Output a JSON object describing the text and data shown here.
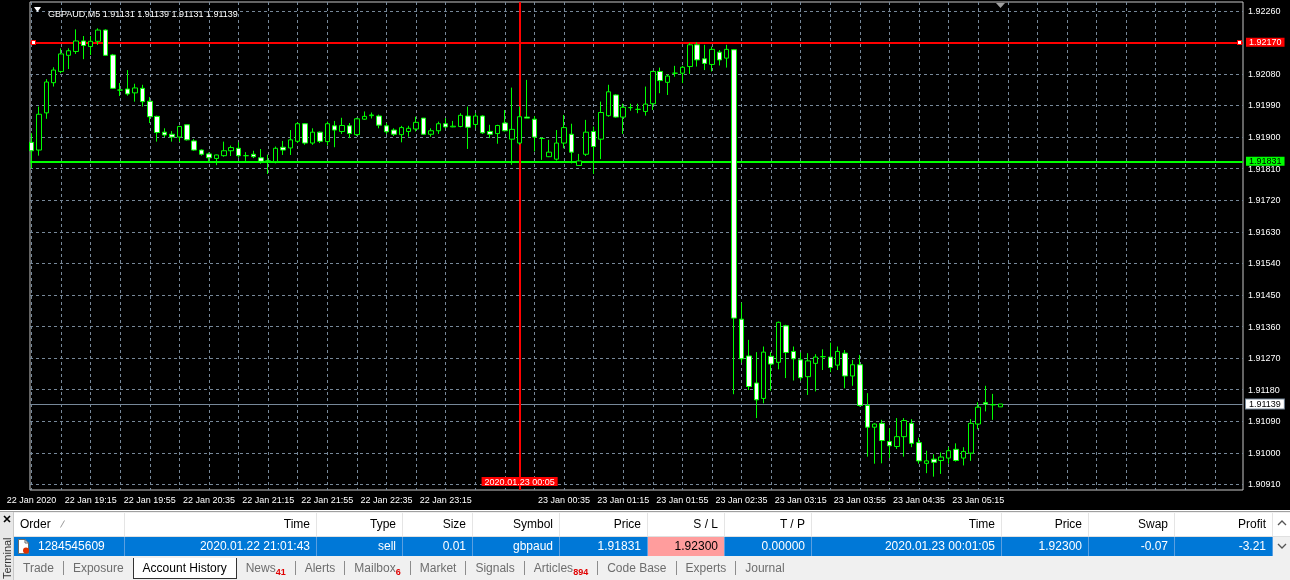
{
  "chart_data": [
    {
      "type": "candlestick",
      "title": "GBPAUD,M5 1.91131 1.91139 1.91131 1.91139",
      "color": "#00ff00",
      "x": [
        "2020-01-22T18:35",
        "2020-01-22T18:40",
        "2020-01-22T18:45",
        "2020-01-22T18:50",
        "2020-01-22T18:55",
        "2020-01-22T19:00",
        "2020-01-22T19:05",
        "2020-01-22T19:10",
        "2020-01-22T19:15",
        "2020-01-22T19:20",
        "2020-01-22T19:25",
        "2020-01-22T19:30",
        "2020-01-22T19:35",
        "2020-01-22T19:40",
        "2020-01-22T19:45",
        "2020-01-22T19:50",
        "2020-01-22T19:55",
        "2020-01-22T20:00",
        "2020-01-22T20:05",
        "2020-01-22T20:10",
        "2020-01-22T20:15",
        "2020-01-22T20:20",
        "2020-01-22T20:25",
        "2020-01-22T20:30",
        "2020-01-22T20:35",
        "2020-01-22T20:40",
        "2020-01-22T20:45",
        "2020-01-22T20:50",
        "2020-01-22T20:55",
        "2020-01-22T21:00",
        "2020-01-22T21:05",
        "2020-01-22T21:10",
        "2020-01-22T21:15",
        "2020-01-22T21:20",
        "2020-01-22T21:25",
        "2020-01-22T21:30",
        "2020-01-22T21:35",
        "2020-01-22T21:40",
        "2020-01-22T21:45",
        "2020-01-22T21:50",
        "2020-01-22T21:55",
        "2020-01-22T22:00",
        "2020-01-22T22:05",
        "2020-01-22T22:10",
        "2020-01-22T22:15",
        "2020-01-22T22:20",
        "2020-01-22T22:25",
        "2020-01-22T22:30",
        "2020-01-22T22:35",
        "2020-01-22T22:40",
        "2020-01-22T22:45",
        "2020-01-22T22:50",
        "2020-01-22T22:55",
        "2020-01-22T23:00",
        "2020-01-22T23:05",
        "2020-01-22T23:10",
        "2020-01-22T23:15",
        "2020-01-22T23:20",
        "2020-01-22T23:25",
        "2020-01-22T23:30",
        "2020-01-22T23:35",
        "2020-01-22T23:40",
        "2020-01-22T23:45",
        "2020-01-22T23:50",
        "2020-01-22T23:55",
        "2020-01-23T00:00",
        "2020-01-23T00:05",
        "2020-01-23T00:10",
        "2020-01-23T00:15",
        "2020-01-23T00:20",
        "2020-01-23T00:25",
        "2020-01-23T00:30",
        "2020-01-23T00:35",
        "2020-01-23T00:40",
        "2020-01-23T00:45",
        "2020-01-23T00:50",
        "2020-01-23T00:55",
        "2020-01-23T01:00",
        "2020-01-23T01:05",
        "2020-01-23T01:10",
        "2020-01-23T01:15",
        "2020-01-23T01:20",
        "2020-01-23T01:25",
        "2020-01-23T01:30",
        "2020-01-23T01:35",
        "2020-01-23T01:40",
        "2020-01-23T01:45",
        "2020-01-23T01:50",
        "2020-01-23T01:55",
        "2020-01-23T02:00",
        "2020-01-23T02:05",
        "2020-01-23T02:10",
        "2020-01-23T02:15",
        "2020-01-23T02:20",
        "2020-01-23T02:25",
        "2020-01-23T02:30",
        "2020-01-23T02:35",
        "2020-01-23T02:40",
        "2020-01-23T02:45",
        "2020-01-23T02:50",
        "2020-01-23T02:55",
        "2020-01-23T03:00",
        "2020-01-23T03:05",
        "2020-01-23T03:10",
        "2020-01-23T03:15",
        "2020-01-23T03:20",
        "2020-01-23T03:25",
        "2020-01-23T03:30",
        "2020-01-23T03:35",
        "2020-01-23T03:40",
        "2020-01-23T03:45",
        "2020-01-23T03:50",
        "2020-01-23T03:55",
        "2020-01-23T04:00",
        "2020-01-23T04:05",
        "2020-01-23T04:10",
        "2020-01-23T04:15",
        "2020-01-23T04:20",
        "2020-01-23T04:25",
        "2020-01-23T04:30",
        "2020-01-23T04:35",
        "2020-01-23T04:40",
        "2020-01-23T04:45",
        "2020-01-23T04:50",
        "2020-01-23T04:55",
        "2020-01-23T05:00",
        "2020-01-23T05:05",
        "2020-01-23T05:10",
        "2020-01-23T05:15",
        "2020-01-23T05:20",
        "2020-01-23T05:25",
        "2020-01-23T05:30"
      ],
      "ohlc": [
        [
          1.91885,
          1.91911,
          1.91811,
          1.91861
        ],
        [
          1.91863,
          1.91987,
          1.91847,
          1.91965
        ],
        [
          1.91969,
          1.92065,
          1.91952,
          1.92057
        ],
        [
          1.92055,
          1.92099,
          1.92044,
          1.92091
        ],
        [
          1.92087,
          1.92153,
          1.92082,
          1.92137
        ],
        [
          1.92133,
          1.92153,
          1.92094,
          1.92146
        ],
        [
          1.92144,
          1.92207,
          1.92137,
          1.92174
        ],
        [
          1.92174,
          1.92188,
          1.92122,
          1.92161
        ],
        [
          1.92158,
          1.92188,
          1.92134,
          1.92173
        ],
        [
          1.92173,
          1.9221,
          1.92163,
          1.92205
        ],
        [
          1.92205,
          1.92207,
          1.92132,
          1.92133
        ],
        [
          1.92134,
          1.92137,
          1.92037,
          1.92039
        ],
        [
          1.92034,
          1.92054,
          1.92017,
          1.92034
        ],
        [
          1.92037,
          1.92091,
          1.92018,
          1.92023
        ],
        [
          1.92026,
          1.92052,
          1.92001,
          1.9204
        ],
        [
          1.92039,
          1.92049,
          1.91987,
          1.92001
        ],
        [
          1.92002,
          1.92014,
          1.9194,
          1.91958
        ],
        [
          1.91959,
          1.91961,
          1.91887,
          1.91913
        ],
        [
          1.91914,
          1.91925,
          1.919,
          1.91906
        ],
        [
          1.91908,
          1.91917,
          1.91887,
          1.919
        ],
        [
          1.919,
          1.91932,
          1.91887,
          1.9193
        ],
        [
          1.91935,
          1.91935,
          1.9189,
          1.91892
        ],
        [
          1.91889,
          1.91894,
          1.91861,
          1.91863
        ],
        [
          1.91863,
          1.91865,
          1.91847,
          1.91851
        ],
        [
          1.91852,
          1.91856,
          1.91827,
          1.91841
        ],
        [
          1.91839,
          1.9185,
          1.9182,
          1.91849
        ],
        [
          1.91847,
          1.91887,
          1.91844,
          1.91861
        ],
        [
          1.91861,
          1.91876,
          1.91846,
          1.9187
        ],
        [
          1.91868,
          1.91885,
          1.91841,
          1.91847
        ],
        [
          1.91847,
          1.91857,
          1.91832,
          1.91847
        ],
        [
          1.91851,
          1.91861,
          1.9184,
          1.91844
        ],
        [
          1.91841,
          1.91866,
          1.91824,
          1.91831
        ],
        [
          1.91832,
          1.9185,
          1.91795,
          1.91832
        ],
        [
          1.9183,
          1.91873,
          1.91825,
          1.91868
        ],
        [
          1.91871,
          1.91889,
          1.91849,
          1.91863
        ],
        [
          1.91869,
          1.9192,
          1.91849,
          1.91892
        ],
        [
          1.91888,
          1.91942,
          1.91883,
          1.91938
        ],
        [
          1.91938,
          1.9194,
          1.91878,
          1.91883
        ],
        [
          1.91883,
          1.91925,
          1.91878,
          1.91914
        ],
        [
          1.91914,
          1.91916,
          1.91883,
          1.91888
        ],
        [
          1.91887,
          1.91944,
          1.91876,
          1.91938
        ],
        [
          1.91932,
          1.91946,
          1.91871,
          1.9192
        ],
        [
          1.91916,
          1.91955,
          1.91909,
          1.91933
        ],
        [
          1.91932,
          1.9194,
          1.91897,
          1.9191
        ],
        [
          1.91907,
          1.91955,
          1.91903,
          1.91952
        ],
        [
          1.91951,
          1.91973,
          1.91949,
          1.91959
        ],
        [
          1.91961,
          1.9197,
          1.91953,
          1.91963
        ],
        [
          1.9196,
          1.91964,
          1.91925,
          1.91934
        ],
        [
          1.91932,
          1.9194,
          1.91909,
          1.91915
        ],
        [
          1.9192,
          1.91925,
          1.91903,
          1.91908
        ],
        [
          1.91907,
          1.91932,
          1.91885,
          1.91927
        ],
        [
          1.91916,
          1.91932,
          1.91901,
          1.91925
        ],
        [
          1.91923,
          1.91958,
          1.91916,
          1.91942
        ],
        [
          1.91954,
          1.91954,
          1.91906,
          1.91908
        ],
        [
          1.91908,
          1.91925,
          1.91901,
          1.91918
        ],
        [
          1.91918,
          1.91944,
          1.91909,
          1.91938
        ],
        [
          1.91938,
          1.91954,
          1.91925,
          1.91929
        ],
        [
          1.91929,
          1.91946,
          1.91928,
          1.91931
        ],
        [
          1.9193,
          1.91968,
          1.91928,
          1.91962
        ],
        [
          1.9196,
          1.91987,
          1.91866,
          1.91928
        ],
        [
          1.91936,
          1.91968,
          1.91925,
          1.9196
        ],
        [
          1.9196,
          1.91962,
          1.91909,
          1.91912
        ],
        [
          1.91916,
          1.91935,
          1.91897,
          1.91908
        ],
        [
          1.9191,
          1.91935,
          1.91881,
          1.91933
        ],
        [
          1.9194,
          1.91977,
          1.91916,
          1.91918
        ],
        [
          1.91894,
          1.92041,
          1.91821,
          1.91922
        ],
        [
          1.91883,
          1.91987,
          1.91878,
          1.91958
        ],
        [
          1.91957,
          1.92063,
          1.91954,
          1.91954
        ],
        [
          1.91951,
          1.9196,
          1.91859,
          1.919
        ],
        [
          1.91896,
          1.919,
          1.91835,
          1.91896
        ],
        [
          1.91844,
          1.91892,
          1.91843,
          1.91857
        ],
        [
          1.91837,
          1.9192,
          1.91833,
          1.91883
        ],
        [
          1.91883,
          1.91963,
          1.91868,
          1.91927
        ],
        [
          1.91908,
          1.91938,
          1.91825,
          1.91857
        ],
        [
          1.91819,
          1.91852,
          1.91818,
          1.91832
        ],
        [
          1.91851,
          1.91949,
          1.91846,
          1.91914
        ],
        [
          1.91916,
          1.9193,
          1.91795,
          1.91873
        ],
        [
          1.91894,
          1.92001,
          1.91837,
          1.9197
        ],
        [
          1.91961,
          1.92049,
          1.91958,
          1.92029
        ],
        [
          1.9202,
          1.92022,
          1.91955,
          1.91957
        ],
        [
          1.91957,
          1.91995,
          1.91909,
          1.91985
        ],
        [
          1.91984,
          1.91995,
          1.91975,
          1.91984
        ],
        [
          1.91979,
          1.91995,
          1.91968,
          1.91979
        ],
        [
          1.91973,
          1.92044,
          1.91961,
          1.91994
        ],
        [
          1.91995,
          1.92089,
          1.91977,
          1.92087
        ],
        [
          1.92087,
          1.92098,
          1.92025,
          1.92061
        ],
        [
          1.92056,
          1.92079,
          1.9202,
          1.92074
        ],
        [
          1.92082,
          1.92103,
          1.92072,
          1.92082
        ],
        [
          1.92082,
          1.92103,
          1.92054,
          1.92099
        ],
        [
          1.92101,
          1.92168,
          1.9208,
          1.92163
        ],
        [
          1.92163,
          1.9217,
          1.92101,
          1.9212
        ],
        [
          1.92123,
          1.92163,
          1.92091,
          1.9211
        ],
        [
          1.92107,
          1.92158,
          1.92087,
          1.9215
        ],
        [
          1.92142,
          1.92148,
          1.92104,
          1.9212
        ],
        [
          1.92125,
          1.92163,
          1.92098,
          1.9215
        ],
        [
          1.92149,
          1.92151,
          1.91167,
          1.91384
        ],
        [
          1.91381,
          1.91428,
          1.91257,
          1.91268
        ],
        [
          1.91276,
          1.91322,
          1.91179,
          1.91189
        ],
        [
          1.91199,
          1.91287,
          1.91099,
          1.91151
        ],
        [
          1.91155,
          1.91303,
          1.91141,
          1.91287
        ],
        [
          1.91275,
          1.91287,
          1.91177,
          1.91253
        ],
        [
          1.91258,
          1.91374,
          1.91238,
          1.91372
        ],
        [
          1.91362,
          1.91365,
          1.91213,
          1.91286
        ],
        [
          1.91289,
          1.91303,
          1.91206,
          1.91268
        ],
        [
          1.91265,
          1.91286,
          1.91206,
          1.91214
        ],
        [
          1.91217,
          1.91284,
          1.91165,
          1.91262
        ],
        [
          1.91255,
          1.91281,
          1.91175,
          1.91273
        ],
        [
          1.91274,
          1.91295,
          1.91236,
          1.91274
        ],
        [
          1.91273,
          1.91314,
          1.9123,
          1.91243
        ],
        [
          1.9125,
          1.91303,
          1.91236,
          1.91289
        ],
        [
          1.91284,
          1.91293,
          1.91184,
          1.91219
        ],
        [
          1.91219,
          1.91265,
          1.91191,
          1.91251
        ],
        [
          1.91251,
          1.91279,
          1.91132,
          1.91135
        ],
        [
          1.91135,
          1.9117,
          1.90989,
          1.91073
        ],
        [
          1.91073,
          1.91084,
          1.90969,
          1.91082
        ],
        [
          1.91084,
          1.91094,
          1.9097,
          1.91035
        ],
        [
          1.91032,
          1.9107,
          1.90985,
          1.9102
        ],
        [
          1.91018,
          1.91099,
          1.91011,
          1.91046
        ],
        [
          1.91046,
          1.91099,
          1.90989,
          1.91092
        ],
        [
          1.91084,
          1.91096,
          1.91016,
          1.91027
        ],
        [
          1.91029,
          1.91043,
          1.90969,
          1.90977
        ],
        [
          1.9097,
          1.91006,
          1.90942,
          1.90977
        ],
        [
          1.90982,
          1.90996,
          1.90932,
          1.90973
        ],
        [
          1.90978,
          1.91001,
          1.9094,
          1.90988
        ],
        [
          1.90985,
          1.91016,
          1.90969,
          1.91006
        ],
        [
          1.9101,
          1.91027,
          1.90975,
          1.90978
        ],
        [
          1.90985,
          1.91016,
          1.90964,
          1.91004
        ],
        [
          1.90999,
          1.91096,
          1.90977,
          1.91084
        ],
        [
          1.91082,
          1.91144,
          1.91067,
          1.9113
        ],
        [
          1.91143,
          1.91191,
          1.91118,
          1.91139
        ],
        [
          1.91137,
          1.91168,
          1.91094,
          1.91137
        ],
        [
          1.91131,
          1.91139,
          1.91131,
          1.91139
        ]
      ],
      "xlim": [
        "2020-01-22T18:34",
        "2020-01-23T08:14"
      ],
      "xticks": [
        {
          "value": "2020-01-22T18:35",
          "label": "22 Jan 2020"
        },
        {
          "value": "2020-01-22T18:55",
          "label": null
        },
        {
          "value": "2020-01-22T19:15",
          "label": "22 Jan 19:15"
        },
        {
          "value": "2020-01-22T19:35",
          "label": null
        },
        {
          "value": "2020-01-22T19:55",
          "label": "22 Jan 19:55"
        },
        {
          "value": "2020-01-22T20:15",
          "label": null
        },
        {
          "value": "2020-01-22T20:35",
          "label": "22 Jan 20:35"
        },
        {
          "value": "2020-01-22T20:55",
          "label": null
        },
        {
          "value": "2020-01-22T21:15",
          "label": "22 Jan 21:15"
        },
        {
          "value": "2020-01-22T21:35",
          "label": null
        },
        {
          "value": "2020-01-22T21:55",
          "label": "22 Jan 21:55"
        },
        {
          "value": "2020-01-22T22:15",
          "label": null
        },
        {
          "value": "2020-01-22T22:35",
          "label": "22 Jan 22:35"
        },
        {
          "value": "2020-01-22T22:55",
          "label": null
        },
        {
          "value": "2020-01-22T23:15",
          "label": "22 Jan 23:15"
        },
        {
          "value": "2020-01-22T23:35",
          "label": null
        },
        {
          "value": "2020-01-22T23:55",
          "label": null
        },
        {
          "value": "2020-01-23T00:15",
          "label": null
        },
        {
          "value": "2020-01-23T00:35",
          "label": "23 Jan 00:35"
        },
        {
          "value": "2020-01-23T00:55",
          "label": null
        },
        {
          "value": "2020-01-23T01:15",
          "label": "23 Jan 01:15"
        },
        {
          "value": "2020-01-23T01:35",
          "label": null
        },
        {
          "value": "2020-01-23T01:55",
          "label": "23 Jan 01:55"
        },
        {
          "value": "2020-01-23T02:15",
          "label": null
        },
        {
          "value": "2020-01-23T02:35",
          "label": "23 Jan 02:35"
        },
        {
          "value": "2020-01-23T02:55",
          "label": null
        },
        {
          "value": "2020-01-23T03:15",
          "label": "23 Jan 03:15"
        },
        {
          "value": "2020-01-23T03:35",
          "label": null
        },
        {
          "value": "2020-01-23T03:55",
          "label": "23 Jan 03:55"
        },
        {
          "value": "2020-01-23T04:15",
          "label": null
        },
        {
          "value": "2020-01-23T04:35",
          "label": "23 Jan 04:35"
        },
        {
          "value": "2020-01-23T04:55",
          "label": null
        },
        {
          "value": "2020-01-23T05:15",
          "label": "23 Jan 05:15"
        },
        {
          "value": "2020-01-23T05:35",
          "label": null
        },
        {
          "value": "2020-01-23T05:55",
          "label": null
        },
        {
          "value": "2020-01-23T06:15",
          "label": null
        },
        {
          "value": "2020-01-23T06:35",
          "label": null
        },
        {
          "value": "2020-01-23T06:55",
          "label": null
        },
        {
          "value": "2020-01-23T07:15",
          "label": null
        },
        {
          "value": "2020-01-23T07:35",
          "label": null
        },
        {
          "value": "2020-01-23T07:55",
          "label": null
        }
      ],
      "ylim": [
        1.90894,
        1.92285
      ],
      "yticks": [
        {
          "value": 1.9091,
          "label": "1.90910"
        },
        {
          "value": 1.91,
          "label": "1.91000"
        },
        {
          "value": 1.9109,
          "label": "1.91090"
        },
        {
          "value": 1.9118,
          "label": "1.91180"
        },
        {
          "value": 1.9127,
          "label": "1.91270"
        },
        {
          "value": 1.9136,
          "label": "1.91360"
        },
        {
          "value": 1.9145,
          "label": "1.91450"
        },
        {
          "value": 1.9154,
          "label": "1.91540"
        },
        {
          "value": 1.9163,
          "label": "1.91630"
        },
        {
          "value": 1.9172,
          "label": "1.91720"
        },
        {
          "value": 1.9181,
          "label": "1.91810"
        },
        {
          "value": 1.919,
          "label": "1.91900"
        },
        {
          "value": 1.9199,
          "label": "1.91990"
        },
        {
          "value": 1.9208,
          "label": "1.92080"
        },
        {
          "value": 1.9217,
          "label": null
        },
        {
          "value": 1.9226,
          "label": "1.92260"
        }
      ],
      "grid": true,
      "ref_lines": [
        {
          "axis": "y",
          "value": 1.9217,
          "label": "1.92170",
          "color": "#ff0000"
        },
        {
          "axis": "y",
          "value": 1.91831,
          "label": "1.91831",
          "color": "#00ff00"
        },
        {
          "axis": "y",
          "value": 1.91139,
          "label": "1.91139",
          "color": "#778899"
        },
        {
          "axis": "x",
          "value": "2020-01-23T00:05",
          "label": "2020.01.23 00:05",
          "color": "#ff0000"
        }
      ]
    },
    {
      "type": "other",
      "title": "Terminal",
      "categories": [
        "Order",
        "Time",
        "Type",
        "Size",
        "Symbol",
        "Price",
        "S / L",
        "T / P",
        "Time",
        "Price",
        "Swap",
        "Profit"
      ],
      "annotations": [
        "1284545609",
        "2020.01.22 21:01:43",
        "sell",
        "0.01",
        "gbpaud",
        "1.91831",
        "1.92300",
        "0.00000",
        "2020.01.23 00:01:05",
        "1.92300",
        "-0.07",
        "-3.21",
        "Trade",
        "Exposure",
        "Account History",
        "News$_{41}$",
        "Alerts",
        "Mailbox$_{6}$",
        "Market",
        "Signals",
        "Articles$_{894}$",
        "Code Base",
        "Experts",
        "Journal"
      ]
    }
  ]
}
